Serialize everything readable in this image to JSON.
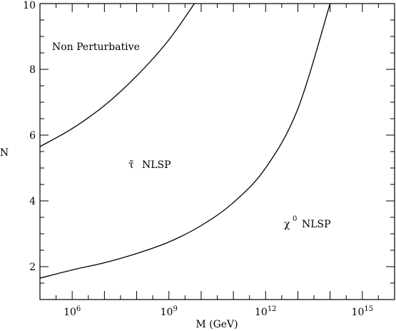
{
  "chart_data": {
    "type": "line",
    "title": "",
    "xlabel": "M (GeV)",
    "ylabel": "N",
    "xscale": "log",
    "xlim": [
      100000,
      1e+16
    ],
    "ylim": [
      1,
      10
    ],
    "x_ticks": [
      {
        "base": "10",
        "exp": "6",
        "value": 1000000
      },
      {
        "base": "10",
        "exp": "9",
        "value": 1000000000
      },
      {
        "base": "10",
        "exp": "12",
        "value": 1000000000000
      },
      {
        "base": "10",
        "exp": "15",
        "value": 1000000000000000
      }
    ],
    "y_ticks": [
      "2",
      "4",
      "6",
      "8",
      "10"
    ],
    "grid": false,
    "legend": "none",
    "series": [
      {
        "x": [
          100000,
          1000000,
          10000000,
          100000000,
          1000000000,
          10000000000,
          14100000000
        ],
        "y": [
          5.65,
          6.2,
          6.9,
          7.8,
          8.9,
          10.3,
          10.5
        ]
      },
      {
        "x": [
          100000,
          1000000,
          10000000,
          100000000,
          1000000000,
          10000000000,
          100000000000,
          1000000000000,
          10000000000000,
          100000000000000
        ],
        "y": [
          1.65,
          1.9,
          2.12,
          2.4,
          2.75,
          3.25,
          3.95,
          5.0,
          6.8,
          10.0
        ]
      }
    ],
    "annotations": {
      "non_perturbative": "Non Perturbative",
      "stau": {
        "symbol": "τ̃",
        "text": "NLSP"
      },
      "neutralino": {
        "symbol": "χ",
        "sup": "0",
        "text": "NLSP"
      }
    }
  }
}
